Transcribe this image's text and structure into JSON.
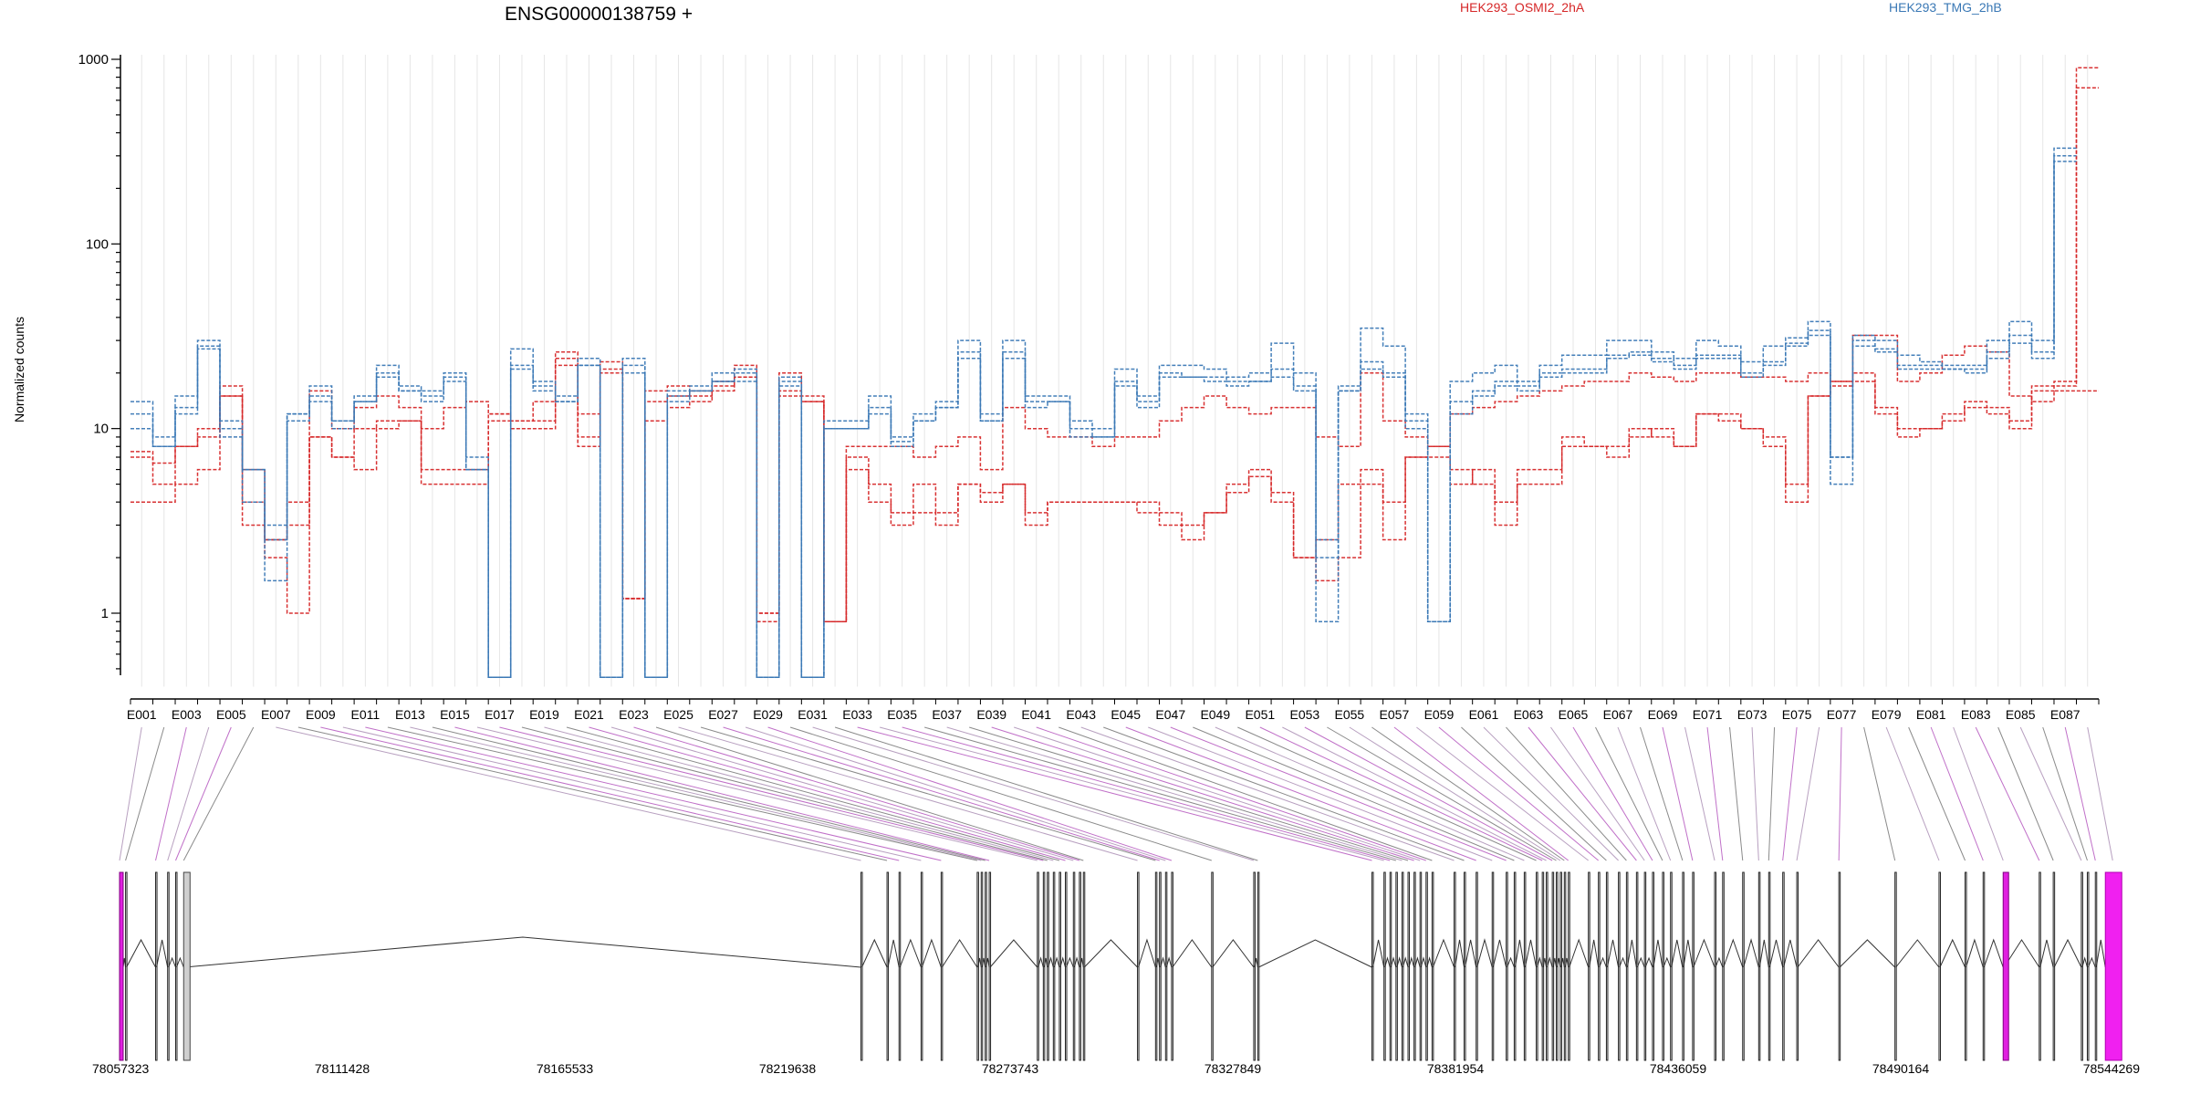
{
  "header": {
    "title": "ENSG00000138759 +",
    "legend": [
      {
        "label": "HEK293_OSMI2_2hA",
        "color": "#d62728"
      },
      {
        "label": "HEK293_TMG_2hB",
        "color": "#3a78b5"
      }
    ]
  },
  "chart_data": {
    "type": "line",
    "title": "ENSG00000138759 +",
    "ylabel": "Normalized counts",
    "yscale": "log",
    "ylim": [
      0.4,
      1000
    ],
    "ytick_values": [
      1,
      10,
      100,
      1000
    ],
    "ytick_labels": [
      "1",
      "10",
      "100",
      "1000"
    ],
    "exon_labels_shown": [
      "E001",
      "E003",
      "E005",
      "E007",
      "E009",
      "E011",
      "E013",
      "E015",
      "E017",
      "E019",
      "E021",
      "E023",
      "E025",
      "E027",
      "E029",
      "E031",
      "E033",
      "E035",
      "E037",
      "E039",
      "E041",
      "E043",
      "E045",
      "E047",
      "E049",
      "E051",
      "E053",
      "E055",
      "E057",
      "E059",
      "E061",
      "E063",
      "E065",
      "E067",
      "E069",
      "E071",
      "E073",
      "E075",
      "E077",
      "E079",
      "E081",
      "E083",
      "E085",
      "E087"
    ],
    "exon_count": 88,
    "series": [
      {
        "group": "HEK293_OSMI2_2hA",
        "color": "#d62728",
        "style": "dashed",
        "values": [
          7.5,
          6.5,
          8,
          9,
          17,
          6,
          2.5,
          4,
          16,
          10,
          13,
          15,
          13,
          10,
          13,
          14,
          12,
          11,
          14,
          22,
          12,
          23,
          1.2,
          16,
          17,
          15,
          16,
          22,
          0.9,
          20,
          14,
          0.9,
          8,
          8,
          8,
          7,
          8,
          9,
          6,
          13,
          10,
          9,
          9,
          8,
          9,
          9,
          11,
          13,
          15,
          13,
          12,
          13,
          13,
          9,
          8,
          20,
          11,
          9,
          8,
          12,
          13,
          14,
          15,
          16,
          17,
          18,
          18,
          20,
          19,
          18,
          20,
          20,
          19,
          19,
          18,
          20,
          18,
          32,
          32,
          18,
          20,
          25,
          28,
          26,
          15,
          14,
          16,
          16
        ]
      },
      {
        "group": "HEK293_OSMI2_2hA",
        "color": "#d62728",
        "style": "dashed",
        "values": [
          4,
          4,
          5,
          6,
          15,
          3,
          2,
          1,
          9,
          7,
          6,
          10,
          11,
          5,
          5,
          5,
          12,
          11,
          11,
          26,
          8,
          21,
          1.2,
          14,
          15,
          16,
          18,
          19,
          1,
          16,
          15,
          0.9,
          7,
          4,
          3.5,
          3.5,
          3,
          5,
          4,
          5,
          3,
          4,
          4,
          4,
          4,
          4,
          3,
          2.5,
          3.5,
          4.5,
          5.5,
          4,
          2,
          1.5,
          2,
          5,
          2.5,
          7,
          8,
          5,
          6,
          3,
          5,
          5,
          8,
          8,
          7,
          9,
          10,
          8,
          12,
          12,
          10,
          8,
          4,
          15,
          17,
          18,
          12,
          9,
          10,
          11,
          13,
          12,
          10,
          16,
          18,
          900
        ]
      },
      {
        "group": "HEK293_OSMI2_2hA",
        "color": "#d62728",
        "style": "dashed",
        "values": [
          7,
          5,
          8,
          10,
          15,
          4,
          2.5,
          3,
          9,
          7,
          10,
          11,
          11,
          6,
          6,
          6,
          11,
          10,
          10,
          24,
          9,
          20,
          1.2,
          11,
          13,
          14,
          17,
          19,
          1,
          15,
          14,
          0.9,
          6,
          5,
          3,
          5,
          3.5,
          5,
          4.5,
          5,
          3.5,
          4,
          4,
          4,
          4,
          3.5,
          3.5,
          3,
          3.5,
          5,
          6,
          4.5,
          2,
          2.5,
          5,
          6,
          4,
          7,
          7,
          6,
          5,
          4,
          6,
          6,
          9,
          8,
          8,
          10,
          9,
          8,
          12,
          11,
          10,
          9,
          5,
          15,
          18,
          20,
          13,
          10,
          10,
          12,
          14,
          13,
          11,
          17,
          17,
          700
        ]
      },
      {
        "group": "HEK293_TMG_2hB",
        "color": "#3a78b5",
        "style": "dashed",
        "values": [
          14,
          9,
          15,
          30,
          11,
          4,
          1.5,
          12,
          17,
          11,
          14,
          22,
          17,
          16,
          20,
          6,
          0.45,
          27,
          18,
          15,
          24,
          0.45,
          24,
          0.45,
          16,
          17,
          20,
          21,
          0.45,
          19,
          0.45,
          11,
          11,
          15,
          9,
          12,
          14,
          30,
          12,
          30,
          15,
          15,
          11,
          10,
          21,
          15,
          22,
          22,
          21,
          19,
          20,
          29,
          20,
          0.9,
          17,
          35,
          28,
          12,
          0.9,
          18,
          20,
          22,
          18,
          22,
          25,
          25,
          30,
          30,
          26,
          24,
          30,
          28,
          23,
          28,
          31,
          38,
          5,
          32,
          30,
          25,
          23,
          22,
          22,
          30,
          38,
          30,
          330
        ]
      },
      {
        "group": "HEK293_TMG_2hB",
        "color": "#3a78b5",
        "style": "dashed",
        "values": [
          12,
          8,
          13,
          28,
          10,
          6,
          3,
          12,
          14,
          11,
          15,
          19,
          16,
          15,
          18,
          7,
          0.45,
          21,
          16,
          14,
          22,
          0.45,
          20,
          0.45,
          14,
          16,
          18,
          18,
          0.45,
          17,
          0.45,
          10,
          10,
          13,
          8.5,
          11,
          13,
          24,
          11,
          24,
          13,
          14,
          9,
          9,
          17,
          13,
          19,
          19,
          18,
          17,
          18,
          19,
          16,
          2,
          16,
          21,
          19,
          10,
          0.9,
          12,
          15,
          17,
          16,
          19,
          20,
          20,
          24,
          25,
          23,
          21,
          24,
          24,
          19,
          22,
          28,
          32,
          7,
          28,
          26,
          21,
          21,
          21,
          20,
          24,
          29,
          24,
          280
        ]
      },
      {
        "group": "HEK293_TMG_2hB",
        "color": "#3a78b5",
        "style": "dashed",
        "values": [
          10,
          8,
          12,
          27,
          9,
          6,
          2.5,
          11,
          15,
          10,
          14,
          20,
          16,
          14,
          19,
          6,
          0.45,
          22,
          17,
          14,
          22,
          0.45,
          22,
          0.45,
          15,
          16,
          18,
          20,
          0.45,
          18,
          0.45,
          10,
          10,
          12,
          8,
          11,
          13,
          26,
          11,
          26,
          14,
          14,
          10,
          9,
          18,
          14,
          20,
          19,
          19,
          18,
          18,
          21,
          17,
          2.5,
          16,
          23,
          20,
          11,
          0.9,
          14,
          16,
          18,
          17,
          20,
          21,
          21,
          25,
          26,
          24,
          22,
          25,
          25,
          20,
          23,
          29,
          34,
          7,
          30,
          27,
          22,
          22,
          21,
          21,
          26,
          32,
          26,
          300
        ]
      }
    ],
    "gene_model": {
      "coordinate_labels": [
        "78057323",
        "78111428",
        "78165533",
        "78219638",
        "78273743",
        "78327849",
        "78381954",
        "78436059",
        "78490164",
        "78544269"
      ],
      "coord_min": 78057323,
      "coord_max": 78544269,
      "highlighted_exons": [
        1,
        88
      ]
    }
  }
}
